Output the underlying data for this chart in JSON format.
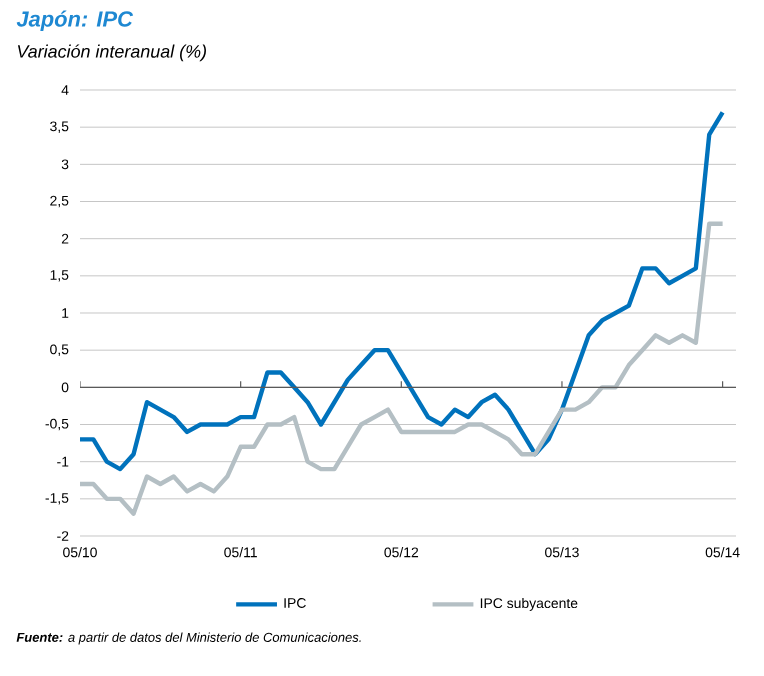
{
  "chart_data": {
    "type": "line",
    "title": "Japón: IPC",
    "subtitle": "Variación interanual (%)",
    "x": [
      "2010-05",
      "2010-06",
      "2010-07",
      "2010-08",
      "2010-09",
      "2010-10",
      "2010-11",
      "2010-12",
      "2011-01",
      "2011-02",
      "2011-03",
      "2011-04",
      "2011-05",
      "2011-06",
      "2011-07",
      "2011-08",
      "2011-09",
      "2011-10",
      "2011-11",
      "2011-12",
      "2012-01",
      "2012-02",
      "2012-03",
      "2012-04",
      "2012-05",
      "2012-06",
      "2012-07",
      "2012-08",
      "2012-09",
      "2012-10",
      "2012-11",
      "2012-12",
      "2013-01",
      "2013-02",
      "2013-03",
      "2013-04",
      "2013-05",
      "2013-06",
      "2013-07",
      "2013-08",
      "2013-09",
      "2013-10",
      "2013-11",
      "2013-12",
      "2014-01",
      "2014-02",
      "2014-03",
      "2014-04",
      "2014-05"
    ],
    "series": [
      {
        "name": "IPC",
        "color": "#0072bc",
        "values": [
          -0.7,
          -0.7,
          -1.0,
          -1.1,
          -0.9,
          -0.2,
          -0.3,
          -0.4,
          -0.6,
          -0.5,
          -0.5,
          -0.5,
          -0.4,
          -0.4,
          0.2,
          0.2,
          0.0,
          -0.2,
          -0.5,
          -0.2,
          0.1,
          0.3,
          0.5,
          0.5,
          0.2,
          -0.1,
          -0.4,
          -0.5,
          -0.3,
          -0.4,
          -0.2,
          -0.1,
          -0.3,
          -0.6,
          -0.9,
          -0.7,
          -0.3,
          0.2,
          0.7,
          0.9,
          1.0,
          1.1,
          1.6,
          1.6,
          1.4,
          1.5,
          1.6,
          3.4,
          3.7
        ]
      },
      {
        "name": "IPC subyacente",
        "color": "#b4bfc4",
        "values": [
          -1.3,
          -1.3,
          -1.5,
          -1.5,
          -1.7,
          -1.2,
          -1.3,
          -1.2,
          -1.4,
          -1.3,
          -1.4,
          -1.2,
          -0.8,
          -0.8,
          -0.5,
          -0.5,
          -0.4,
          -1.0,
          -1.1,
          -1.1,
          -0.8,
          -0.5,
          -0.4,
          -0.3,
          -0.6,
          -0.6,
          -0.6,
          -0.6,
          -0.6,
          -0.5,
          -0.5,
          -0.6,
          -0.7,
          -0.9,
          -0.9,
          -0.6,
          -0.3,
          -0.3,
          -0.2,
          0.0,
          0.0,
          0.3,
          0.5,
          0.7,
          0.6,
          0.7,
          0.6,
          2.2,
          2.2
        ]
      }
    ],
    "xlim": [
      "2010-05",
      "2014-06"
    ],
    "xticks": [
      {
        "value": "2010-05",
        "label": "05/10"
      },
      {
        "value": "2011-05",
        "label": "05/11"
      },
      {
        "value": "2012-05",
        "label": "05/12"
      },
      {
        "value": "2013-05",
        "label": "05/13"
      },
      {
        "value": "2014-05",
        "label": "05/14"
      }
    ],
    "ylim": [
      -2,
      4
    ],
    "yticks": [
      {
        "value": -2,
        "label": "-2"
      },
      {
        "value": -1.5,
        "label": "-1,5"
      },
      {
        "value": -1,
        "label": "-1"
      },
      {
        "value": -0.5,
        "label": "-0,5"
      },
      {
        "value": 0,
        "label": "0"
      },
      {
        "value": 0.5,
        "label": "0,5"
      },
      {
        "value": 1,
        "label": "1"
      },
      {
        "value": 1.5,
        "label": "1,5"
      },
      {
        "value": 2,
        "label": "2"
      },
      {
        "value": 2.5,
        "label": "2,5"
      },
      {
        "value": 3,
        "label": "3"
      },
      {
        "value": 3.5,
        "label": "3,5"
      },
      {
        "value": 4,
        "label": "4"
      }
    ],
    "grid": "y",
    "legend": "bottom",
    "marker": "none",
    "line_style": "solid",
    "annotations": [
      "**Fuente:** a partir de datos del Ministerio de Comunicaciones."
    ]
  }
}
